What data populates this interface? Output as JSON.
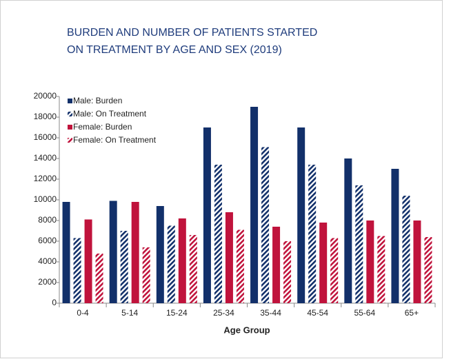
{
  "chart_data": {
    "type": "bar",
    "title": [
      "BURDEN AND NUMBER OF PATIENTS STARTED",
      "ON TREATMENT BY AGE AND SEX (2019)"
    ],
    "x_label": "Age Group",
    "categories": [
      "0-4",
      "5-14",
      "15-24",
      "25-34",
      "35-44",
      "45-54",
      "55-64",
      "65+"
    ],
    "series": [
      {
        "name": "Male: Burden",
        "color": "#12306a",
        "pattern": "solid",
        "values": [
          9800,
          9900,
          9400,
          17000,
          19000,
          17000,
          14000,
          13000
        ]
      },
      {
        "name": "Male: On Treatment",
        "color": "#12306a",
        "pattern": "hatched",
        "values": [
          6300,
          7000,
          7500,
          13400,
          15100,
          13400,
          11400,
          10400
        ]
      },
      {
        "name": "Female: Burden",
        "color": "#c0133c",
        "pattern": "solid",
        "values": [
          8100,
          9800,
          8200,
          8800,
          7400,
          7800,
          8000,
          8000
        ]
      },
      {
        "name": "Female: On Treatment",
        "color": "#c0133c",
        "pattern": "hatched",
        "values": [
          4800,
          5400,
          6600,
          7100,
          6000,
          6300,
          6500,
          6400
        ]
      }
    ],
    "ylim": [
      0,
      20000
    ],
    "yticks": [
      0,
      2000,
      4000,
      6000,
      8000,
      10000,
      12000,
      14000,
      16000,
      18000,
      20000
    ],
    "legend": "top-left"
  }
}
